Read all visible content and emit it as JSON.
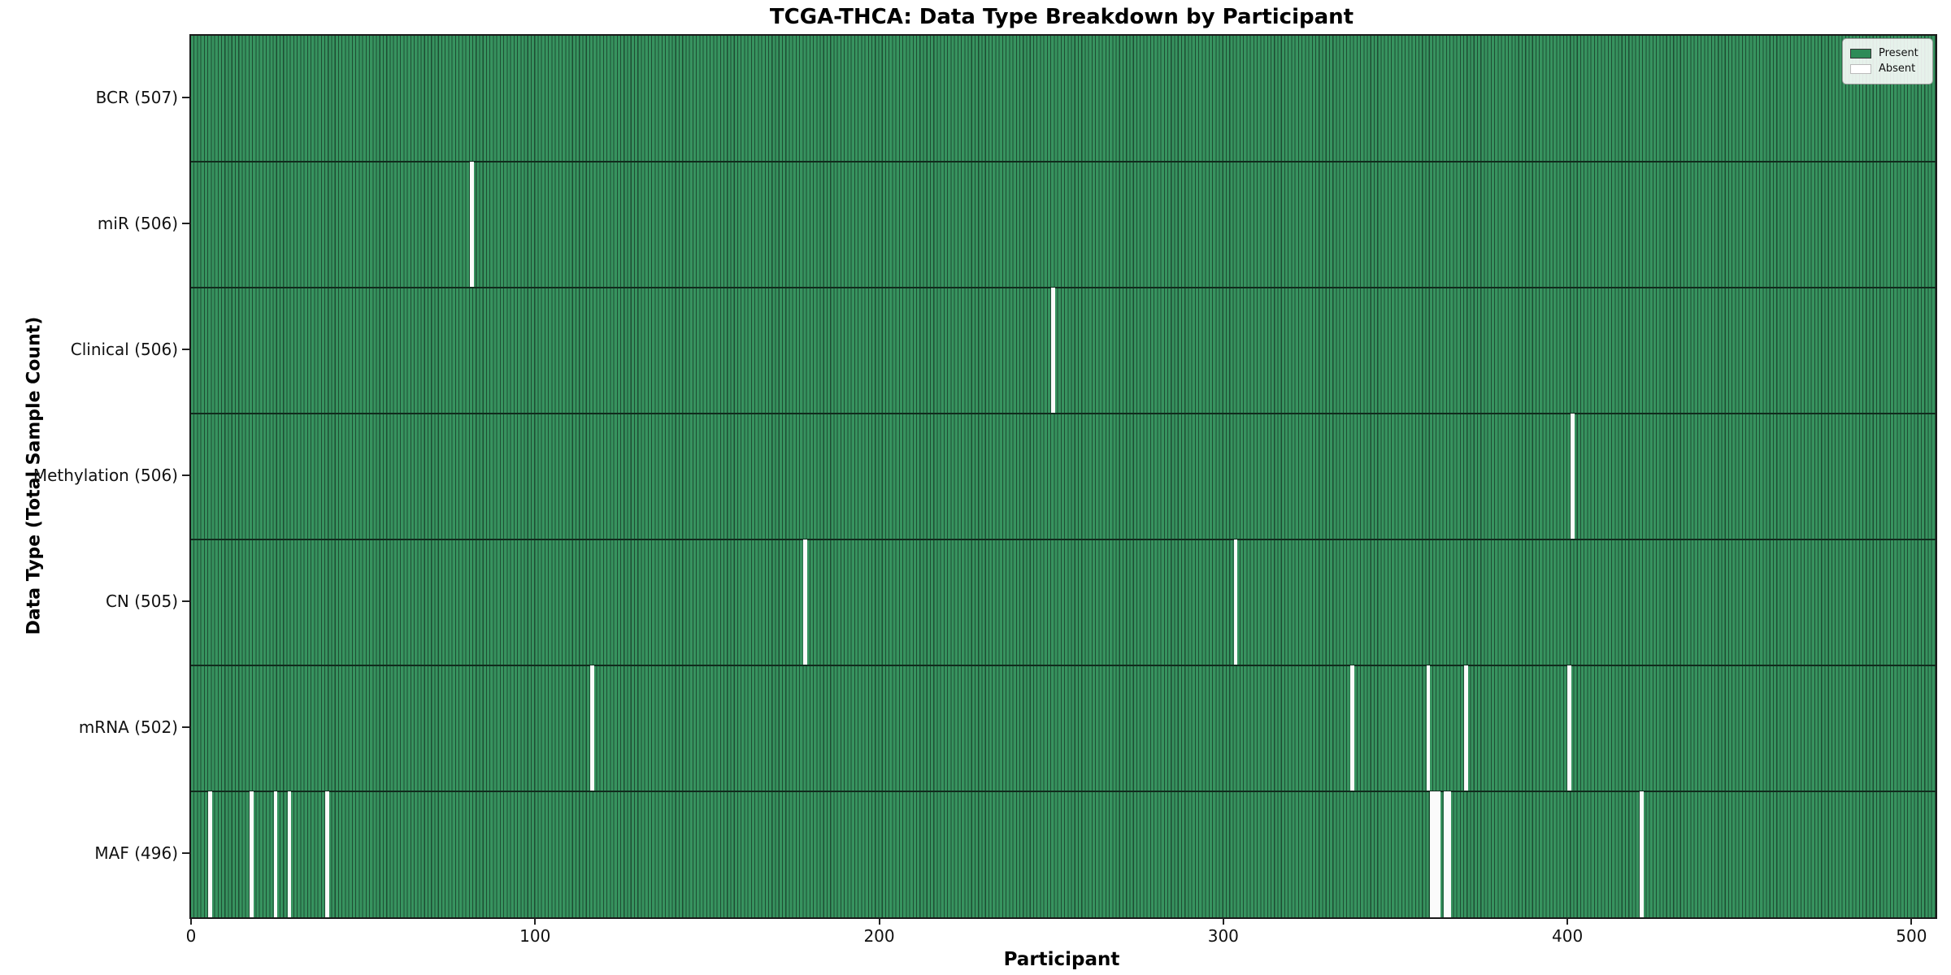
{
  "figure": {
    "title": "TCGA-THCA: Data Type Breakdown by Participant",
    "xlabel": "Participant",
    "ylabel": "Data Type (Total Sample Count)"
  },
  "legend": {
    "entries": [
      {
        "label": "Present",
        "color": "#2e8b57",
        "edge": "#333333"
      },
      {
        "label": "Absent",
        "color": "#ffffff",
        "edge": "#bbbbbb"
      }
    ]
  },
  "chart_data": {
    "type": "heatmap",
    "title": "TCGA-THCA: Data Type Breakdown by Participant",
    "xlabel": "Participant",
    "ylabel": "Data Type (Total Sample Count)",
    "n_participants": 507,
    "x_ticks": [
      0,
      100,
      200,
      300,
      400,
      500
    ],
    "x_range": [
      0,
      507
    ],
    "grid": false,
    "legend_position": "upper right",
    "colors": {
      "present": "#2e8b57",
      "absent": "#ffffff",
      "cell_edge": "#1e4d33"
    },
    "rows": [
      {
        "label": "BCR (507)",
        "name": "BCR",
        "total": 507,
        "absent_participants": []
      },
      {
        "label": "miR (506)",
        "name": "miR",
        "total": 506,
        "absent_participants": [
          81
        ]
      },
      {
        "label": "Clinical (506)",
        "name": "Clinical",
        "total": 506,
        "absent_participants": [
          250
        ]
      },
      {
        "label": "Methylation (506)",
        "name": "Methylation",
        "total": 506,
        "absent_participants": [
          401
        ]
      },
      {
        "label": "CN (505)",
        "name": "CN",
        "total": 505,
        "absent_participants": [
          178,
          303
        ]
      },
      {
        "label": "mRNA (502)",
        "name": "mRNA",
        "total": 502,
        "absent_participants": [
          116,
          337,
          359,
          370,
          400
        ]
      },
      {
        "label": "MAF (496)",
        "name": "MAF",
        "total": 496,
        "absent_participants": [
          5,
          17,
          24,
          28,
          39,
          360,
          361,
          362,
          364,
          365,
          421
        ]
      }
    ]
  }
}
